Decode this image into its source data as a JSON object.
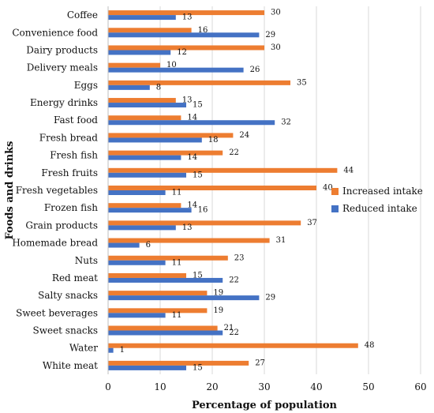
{
  "chart_data": {
    "type": "bar",
    "orientation": "horizontal",
    "categories": [
      "Coffee",
      "Convenience food",
      "Dairy products",
      "Delivery meals",
      "Eggs",
      "Energy  drinks",
      "Fast food",
      "Fresh bread",
      "Fresh fish",
      "Fresh fruits",
      "Fresh vegetables",
      "Frozen fish",
      "Grain products",
      "Homemade bread",
      "Nuts",
      "Red meat",
      "Salty snacks",
      "Sweet beverages",
      "Sweet snacks",
      "Water",
      "White meat"
    ],
    "series": [
      {
        "name": "Increased intake",
        "color": "#ED7D31",
        "values": [
          30,
          16,
          30,
          10,
          35,
          13,
          14,
          24,
          22,
          44,
          40,
          14,
          37,
          31,
          23,
          15,
          19,
          19,
          21,
          48,
          27
        ]
      },
      {
        "name": "Reduced intake",
        "color": "#4472C4",
        "values": [
          13,
          29,
          12,
          26,
          8,
          15,
          32,
          18,
          14,
          15,
          11,
          16,
          13,
          6,
          11,
          22,
          29,
          11,
          22,
          1,
          15
        ]
      }
    ],
    "xlim": [
      0,
      60
    ],
    "xticks": [
      0,
      10,
      20,
      30,
      40,
      50,
      60
    ],
    "xlabel": "Percentage of population",
    "ylabel": "Foods and drinks",
    "grid": true,
    "legend_position": "right"
  }
}
